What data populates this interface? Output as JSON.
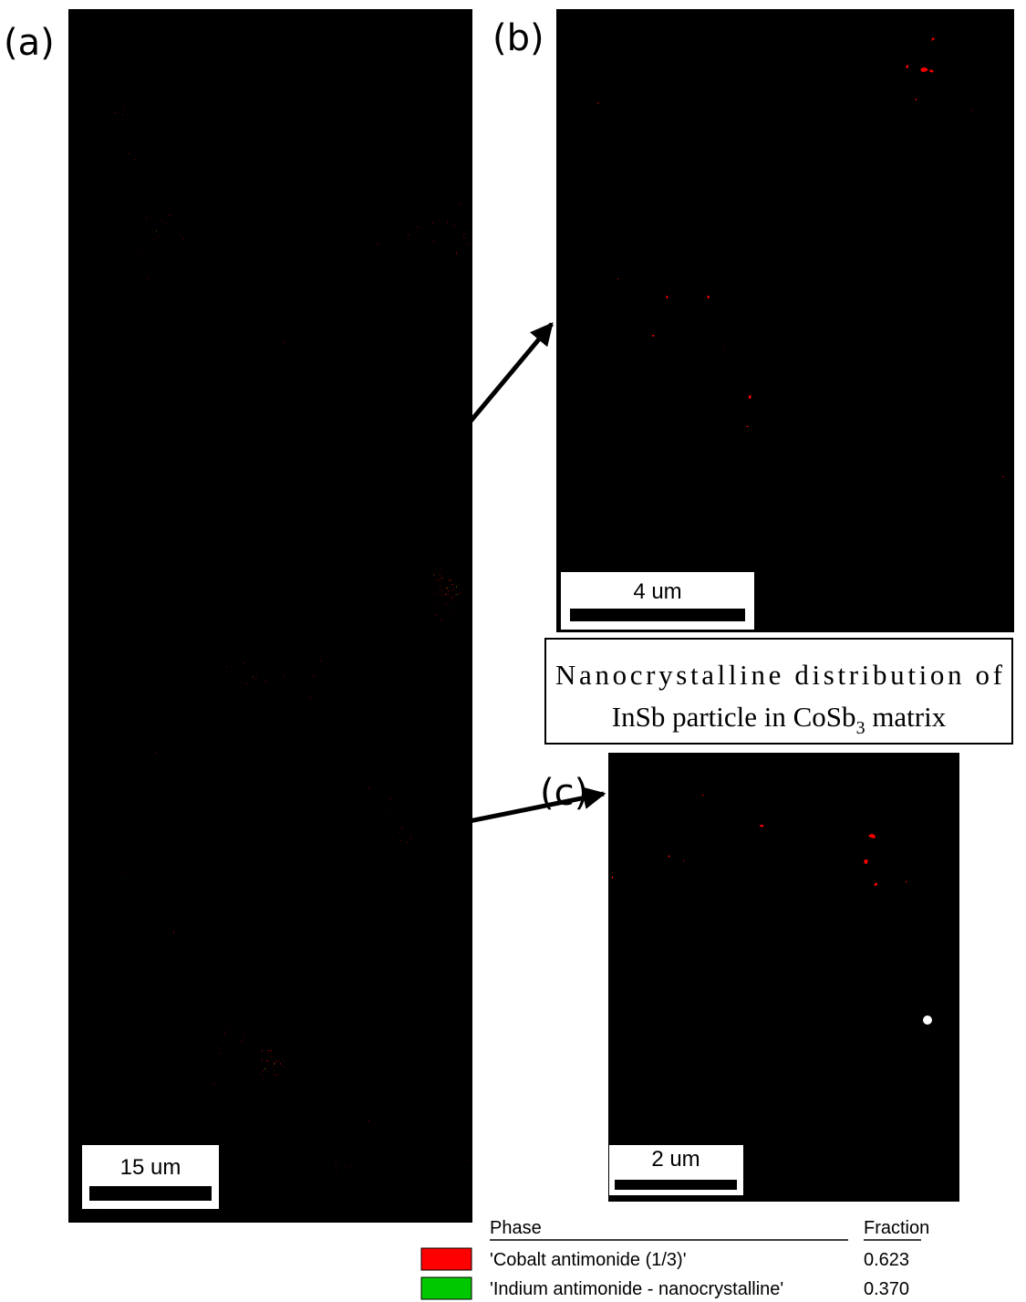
{
  "panels": [
    {
      "label": "(a)",
      "scale_bar": "15 um"
    },
    {
      "label": "(b)",
      "scale_bar": "4 um"
    },
    {
      "label": "(c)",
      "scale_bar": "2 um"
    }
  ],
  "caption": {
    "line1": "Nanocrystalline distribution of",
    "line2_start": "InSb particle in CoSb",
    "line2_sub": "3",
    "line2_end": " matrix"
  },
  "legend": {
    "headers": [
      "Phase",
      "Fraction"
    ],
    "rows": [
      {
        "name": "'Cobalt antimonide (1/3)'",
        "fraction": "0.623",
        "color": "#ff0000"
      },
      {
        "name": "'Indium antimonide - nanocrystalline'",
        "fraction": "0.370",
        "color": "#00c800"
      }
    ]
  }
}
